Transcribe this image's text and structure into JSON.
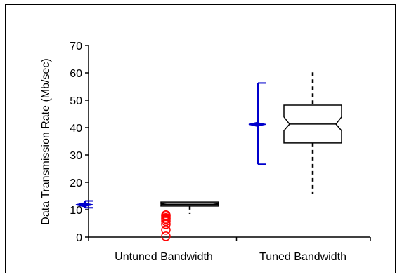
{
  "chart_data": {
    "type": "box",
    "title": "",
    "xlabel": "",
    "ylabel": "Data Transmission Rate (Mb/sec)",
    "ylim": [
      0,
      70
    ],
    "yticks": [
      0,
      10,
      20,
      30,
      40,
      50,
      60,
      70
    ],
    "grid": false,
    "categories": [
      "Untuned Bandwidth",
      "Tuned Bandwidth"
    ],
    "series": [
      {
        "category": "Untuned Bandwidth",
        "mean": 11.8,
        "ci_low": 10.7,
        "ci_high": 13.2,
        "box": {
          "whisker_low": 8.5,
          "q1": 11.3,
          "median": 12.0,
          "q3": 12.8,
          "whisker_high": 12.8,
          "notch_low": 11.8,
          "notch_high": 12.2
        },
        "outliers": [
          0.3,
          2.6,
          4.7,
          5.8,
          6.5,
          7.0,
          7.6,
          8.0
        ]
      },
      {
        "category": "Tuned Bandwidth",
        "mean": 41.2,
        "ci_low": 26.6,
        "ci_high": 56.3,
        "box": {
          "whisker_low": 15.7,
          "q1": 34.4,
          "median": 41.3,
          "q3": 48.2,
          "whisker_high": 60.2,
          "notch_low": 38.9,
          "notch_high": 43.9
        },
        "outliers": []
      }
    ],
    "colors": {
      "interval": "#0000cc",
      "box": "#000000",
      "outlier": "#ff0000"
    }
  }
}
